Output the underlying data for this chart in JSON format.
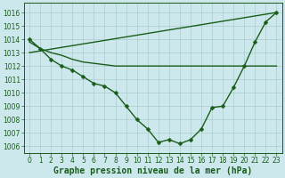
{
  "bg_color": "#cce8ec",
  "grid_color": "#aacccc",
  "line_color": "#1a5c1a",
  "xlabel": "Graphe pression niveau de la mer (hPa)",
  "xlim": [
    -0.5,
    23.5
  ],
  "ylim": [
    1005.5,
    1016.7
  ],
  "yticks": [
    1006,
    1007,
    1008,
    1009,
    1010,
    1011,
    1012,
    1013,
    1014,
    1015,
    1016
  ],
  "xticks": [
    0,
    1,
    2,
    3,
    4,
    5,
    6,
    7,
    8,
    9,
    10,
    11,
    12,
    13,
    14,
    15,
    16,
    17,
    18,
    19,
    20,
    21,
    22,
    23
  ],
  "series": [
    {
      "x": [
        0,
        1,
        2,
        3,
        4,
        5,
        6,
        7,
        8,
        9,
        10,
        11,
        12,
        13,
        14,
        15,
        16,
        17,
        18,
        19,
        20,
        21,
        22,
        23
      ],
      "y": [
        1014.0,
        1013.3,
        1012.5,
        1012.0,
        1011.7,
        1011.2,
        1010.7,
        1010.5,
        1010.0,
        1009.0,
        1008.0,
        1007.3,
        1006.3,
        1006.5,
        1006.2,
        1006.5,
        1007.3,
        1008.9,
        1009.0,
        1010.4,
        1012.0,
        1013.8,
        1015.3,
        1016.0
      ],
      "has_markers": true
    },
    {
      "x": [
        0,
        1,
        2,
        3,
        4,
        5,
        6,
        7,
        8,
        9,
        10,
        11,
        12,
        13,
        14,
        15,
        16,
        17,
        18,
        19,
        20,
        21,
        22,
        23
      ],
      "y": [
        1013.8,
        1013.3,
        1013.0,
        1012.8,
        1012.5,
        1012.3,
        1012.2,
        1012.1,
        1012.0,
        1012.0,
        1012.0,
        1012.0,
        1012.0,
        1012.0,
        1012.0,
        1012.0,
        1012.0,
        1012.0,
        1012.0,
        1012.0,
        1012.0,
        1012.0,
        1012.0,
        1012.0
      ],
      "has_markers": false
    },
    {
      "x": [
        0,
        23
      ],
      "y": [
        1013.0,
        1016.0
      ],
      "has_markers": false
    }
  ],
  "marker": "D",
  "markersize": 2.5,
  "linewidth": 1.0,
  "tick_fontsize": 5.5,
  "xlabel_fontsize": 7.0,
  "tick_color": "#1a5c1a",
  "spine_color": "#1a5c1a"
}
